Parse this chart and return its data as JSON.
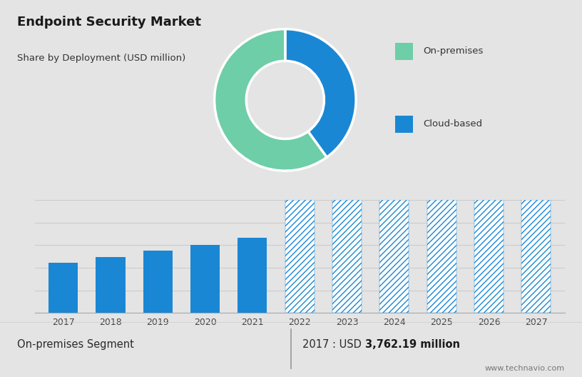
{
  "title": "Endpoint Security Market",
  "subtitle": "Share by Deployment (USD million)",
  "top_bg_color": "#cdd5df",
  "bottom_bg_color": "#e4e4e4",
  "bar_color_solid": "#1a87d4",
  "bar_color_hatch": "#1a87d4",
  "hatch_pattern": "////",
  "years_solid": [
    "2017",
    "2018",
    "2019",
    "2020",
    "2021"
  ],
  "years_hatch": [
    "2022",
    "2023",
    "2024",
    "2025",
    "2026",
    "2027"
  ],
  "values_solid": [
    3762,
    4200,
    4700,
    5100,
    5650
  ],
  "values_hatch": [
    8500,
    8500,
    8500,
    8500,
    8500,
    8500
  ],
  "pie_colors": [
    "#1a87d4",
    "#6dcea8"
  ],
  "pie_sizes": [
    40,
    60
  ],
  "pie_labels": [
    "Cloud-based",
    "On-premises"
  ],
  "legend_square_colors": [
    "#6dcea8",
    "#1a87d4"
  ],
  "legend_labels": [
    "On-premises",
    "Cloud-based"
  ],
  "footer_left": "On-premises Segment",
  "footer_right_prefix": "2017 : USD ",
  "footer_right_bold": "3,762.19 million",
  "footer_website": "www.technavio.com",
  "divider_color": "#999999",
  "grid_line_color": "#cccccc",
  "ylim": [
    0,
    8500
  ],
  "grid_levels": [
    0,
    1700,
    3400,
    5100,
    6800,
    8500
  ]
}
